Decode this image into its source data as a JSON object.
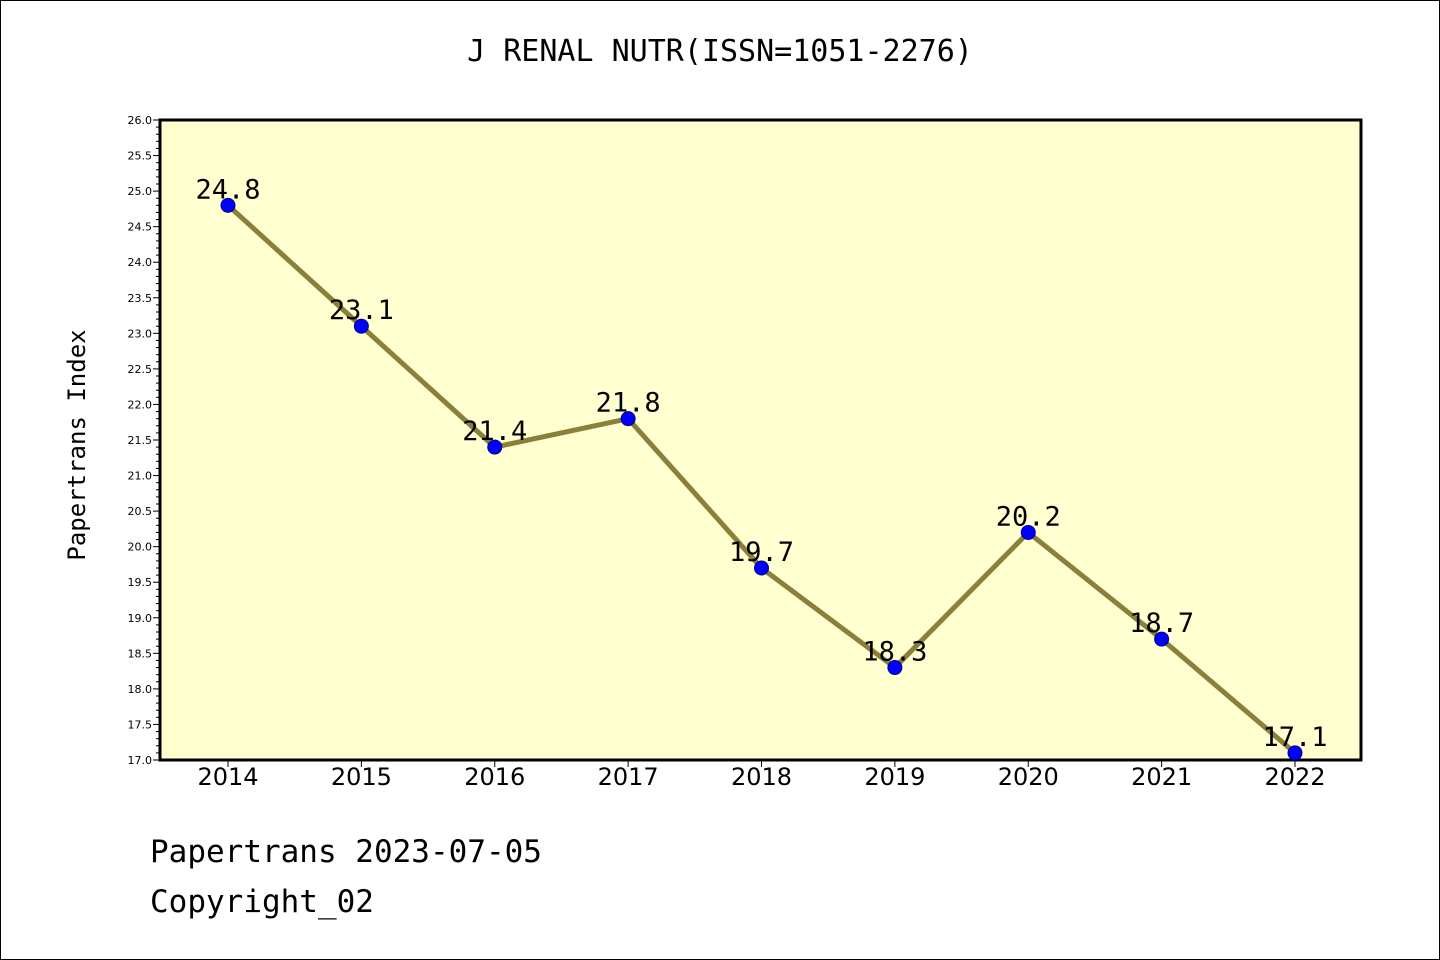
{
  "chart_data": {
    "type": "line",
    "title": "J RENAL NUTR(ISSN=1051-2276)",
    "xlabel": "",
    "ylabel": "Papertrans Index",
    "categories": [
      "2014",
      "2015",
      "2016",
      "2017",
      "2018",
      "2019",
      "2020",
      "2021",
      "2022"
    ],
    "series": [
      {
        "values": [
          24.8,
          23.1,
          21.4,
          21.8,
          19.7,
          18.3,
          20.2,
          18.7,
          17.1
        ],
        "data_labels": [
          "24.8",
          "23.1",
          "21.4",
          "21.8",
          "19.7",
          "18.3",
          "20.2",
          "18.7",
          "17.1"
        ]
      }
    ],
    "ylim": [
      17.0,
      26.0
    ],
    "yticks": [
      "17.0",
      "17.5",
      "18.0",
      "18.5",
      "19.0",
      "19.5",
      "20.0",
      "20.5",
      "21.0",
      "21.5",
      "22.0",
      "22.5",
      "23.0",
      "23.5",
      "24.0",
      "24.5",
      "25.0",
      "25.5",
      "26.0"
    ],
    "grid": false,
    "legend": "none",
    "colors": {
      "plot_background": "#ffffd0",
      "line": "#8b8039",
      "marker": "#0000ff",
      "axis": "#000000"
    }
  },
  "footer": {
    "line1": "Papertrans 2023-07-05",
    "line2": "Copyright_02"
  }
}
